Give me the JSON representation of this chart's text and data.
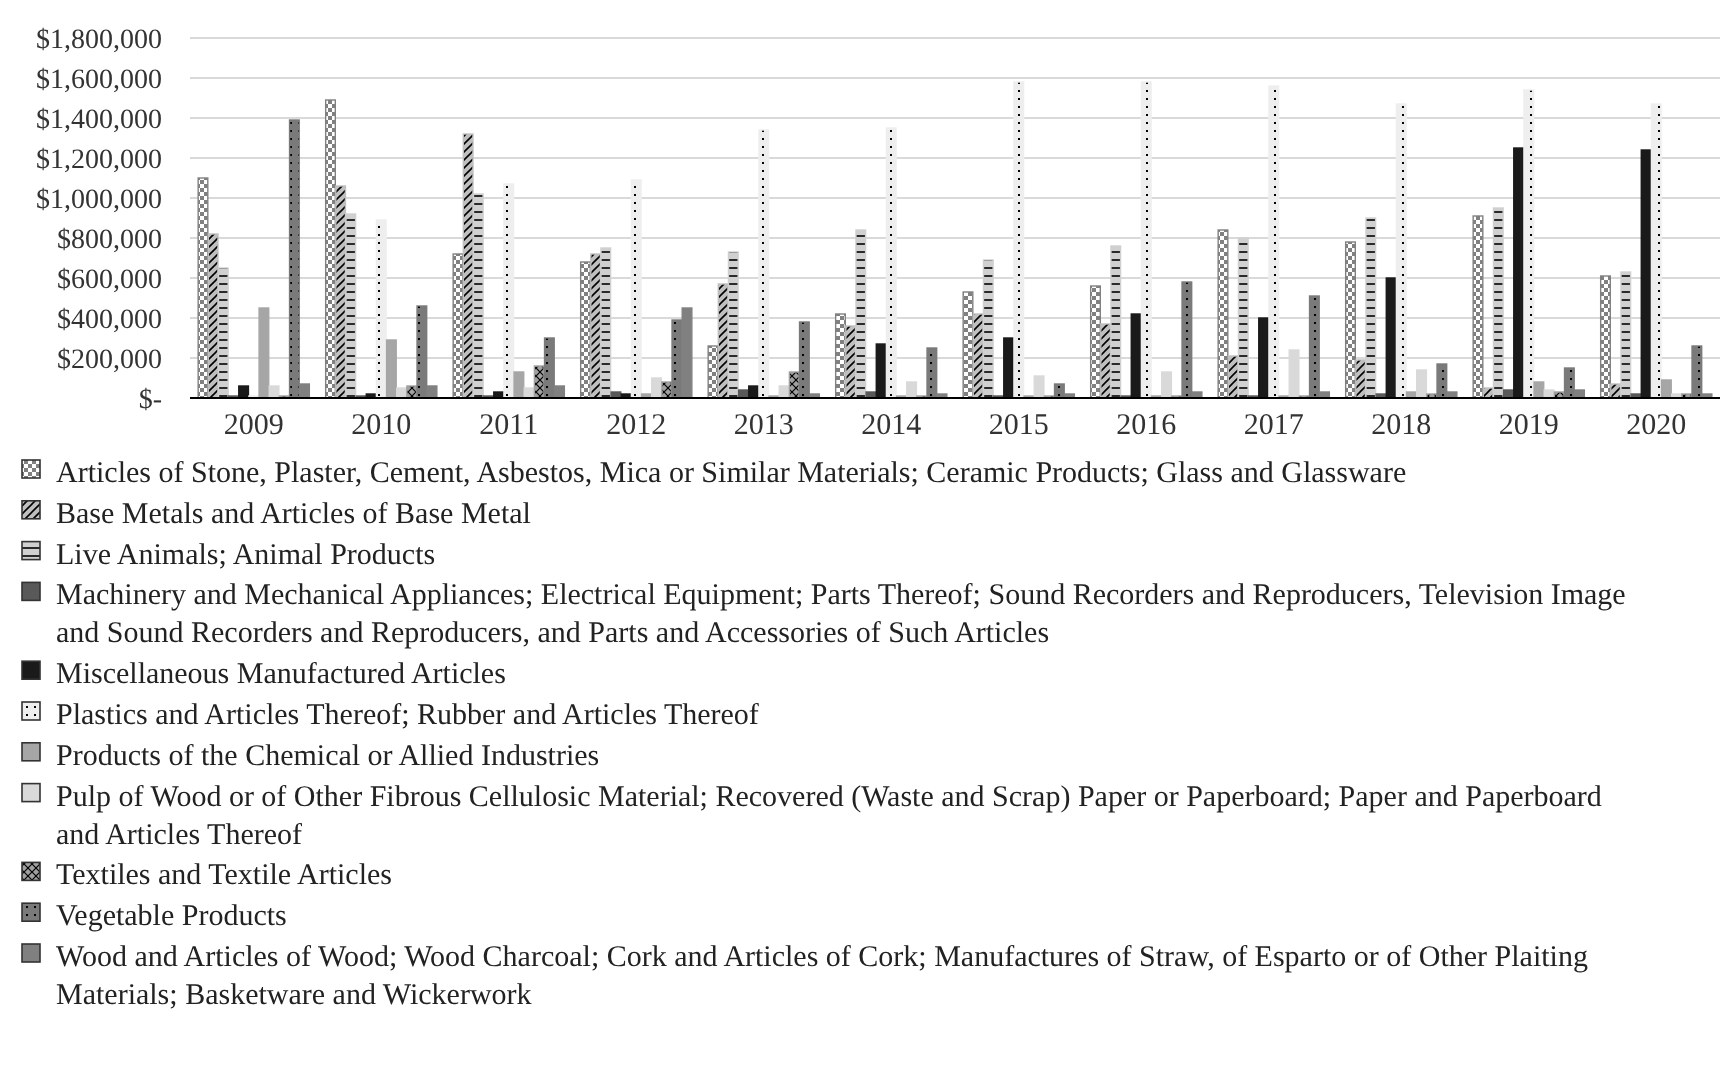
{
  "chart_data": {
    "type": "bar",
    "categories": [
      "2009",
      "2010",
      "2011",
      "2012",
      "2013",
      "2014",
      "2015",
      "2016",
      "2017",
      "2018",
      "2019",
      "2020"
    ],
    "ylim": [
      0,
      1800000
    ],
    "yticks": [
      {
        "value": 0,
        "label": "$-"
      },
      {
        "value": 200000,
        "label": "$200,000"
      },
      {
        "value": 400000,
        "label": "$400,000"
      },
      {
        "value": 600000,
        "label": "$600,000"
      },
      {
        "value": 800000,
        "label": "$800,000"
      },
      {
        "value": 1000000,
        "label": "$1,000,000"
      },
      {
        "value": 1200000,
        "label": "$1,200,000"
      },
      {
        "value": 1400000,
        "label": "$1,400,000"
      },
      {
        "value": 1600000,
        "label": "$1,600,000"
      },
      {
        "value": 1800000,
        "label": "$1,800,000"
      }
    ],
    "grid": "y",
    "legend": "bottom",
    "series": [
      {
        "name": "Articles of Stone, Plaster, Cement, Asbestos, Mica or Similar Materials; Ceramic Products; Glass and Glassware",
        "color": "#808080",
        "values": [
          1100000,
          1490000,
          720000,
          680000,
          260000,
          420000,
          530000,
          560000,
          840000,
          780000,
          910000,
          610000
        ]
      },
      {
        "name": "Base Metals and Articles of Base Metal",
        "color": "#bfbfbf",
        "values": [
          820000,
          1060000,
          1320000,
          720000,
          570000,
          360000,
          420000,
          370000,
          210000,
          190000,
          50000,
          70000
        ]
      },
      {
        "name": "Live Animals; Animal Products",
        "color": "#d0d0d0",
        "values": [
          650000,
          920000,
          1020000,
          750000,
          730000,
          840000,
          690000,
          760000,
          800000,
          900000,
          950000,
          630000
        ]
      },
      {
        "name": "Machinery and Mechanical Appliances; Electrical Equipment; Parts Thereof; Sound Recorders and Reproducers, Television Image and Sound Recorders and Reproducers, and Parts and Accessories of Such Articles",
        "color": "#595959",
        "values": [
          10000,
          10000,
          10000,
          30000,
          40000,
          30000,
          10000,
          10000,
          10000,
          20000,
          40000,
          20000
        ]
      },
      {
        "name": "Miscellaneous Manufactured Articles",
        "color": "#1a1a1a",
        "values": [
          60000,
          20000,
          30000,
          20000,
          60000,
          270000,
          300000,
          420000,
          400000,
          600000,
          1250000,
          1240000
        ]
      },
      {
        "name": "Plastics and Articles Thereof; Rubber and Articles Thereof",
        "color": "#eeeeee",
        "values": [
          10000,
          890000,
          1070000,
          1090000,
          1340000,
          1350000,
          1580000,
          1580000,
          1560000,
          1470000,
          1540000,
          1470000
        ]
      },
      {
        "name": "Products of the Chemical or Allied Industries",
        "color": "#a6a6a6",
        "values": [
          450000,
          290000,
          130000,
          20000,
          10000,
          10000,
          10000,
          10000,
          10000,
          30000,
          80000,
          90000
        ]
      },
      {
        "name": "Pulp of Wood or of Other Fibrous Cellulosic Material; Recovered (Waste and Scrap) Paper or Paperboard; Paper and Paperboard and Articles Thereof",
        "color": "#d9d9d9",
        "values": [
          60000,
          50000,
          50000,
          100000,
          60000,
          80000,
          110000,
          130000,
          240000,
          140000,
          40000,
          20000
        ]
      },
      {
        "name": "Textiles and Textile Articles",
        "color": "#a0a0a0",
        "values": [
          10000,
          60000,
          160000,
          80000,
          130000,
          10000,
          10000,
          10000,
          10000,
          20000,
          30000,
          20000
        ]
      },
      {
        "name": "Vegetable Products",
        "color": "#7a7a7a",
        "values": [
          1390000,
          460000,
          300000,
          390000,
          380000,
          250000,
          70000,
          580000,
          510000,
          170000,
          150000,
          260000
        ]
      },
      {
        "name": "Wood and Articles of Wood; Wood Charcoal; Cork and Articles of Cork; Manufactures of Straw, of Esparto or of Other Plaiting Materials; Basketware and Wickerwork",
        "color": "#808080",
        "values": [
          70000,
          60000,
          60000,
          450000,
          20000,
          20000,
          20000,
          30000,
          30000,
          30000,
          40000,
          20000
        ]
      }
    ]
  }
}
